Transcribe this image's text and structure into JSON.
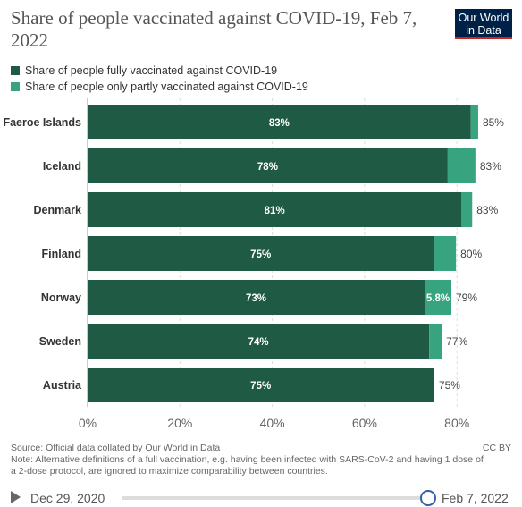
{
  "header": {
    "title": "Share of people vaccinated against COVID-19, Feb 7, 2022",
    "logo_line1": "Our World",
    "logo_line2": "in Data"
  },
  "legend": [
    {
      "label": "Share of people fully vaccinated against COVID-19",
      "color": "#1e5a44"
    },
    {
      "label": "Share of people only partly vaccinated against COVID-19",
      "color": "#37a47f"
    }
  ],
  "chart_data": {
    "type": "bar",
    "orientation": "horizontal",
    "stacked": true,
    "categories": [
      "Faeroe Islands",
      "Iceland",
      "Denmark",
      "Finland",
      "Norway",
      "Sweden",
      "Austria"
    ],
    "series": [
      {
        "name": "Share of people fully vaccinated against COVID-19",
        "values": [
          83,
          78,
          81,
          75,
          73,
          74,
          75
        ],
        "labels": [
          "83%",
          "78%",
          "81%",
          "75%",
          "73%",
          "74%",
          "75%"
        ],
        "color": "#1e5a44"
      },
      {
        "name": "Share of people only partly vaccinated against COVID-19",
        "values": [
          1.6,
          6.0,
          2.3,
          4.8,
          5.8,
          2.7,
          0.1
        ],
        "labels": [
          "",
          "",
          "",
          "",
          "5.8%",
          "",
          ""
        ],
        "color": "#37a47f"
      }
    ],
    "totals": [
      "85%",
      "83%",
      "83%",
      "80%",
      "79%",
      "77%",
      "75%"
    ],
    "xlim": [
      0,
      85
    ],
    "xticks": [
      0,
      20,
      40,
      60,
      80
    ],
    "xtick_labels": [
      "0%",
      "20%",
      "40%",
      "60%",
      "80%"
    ],
    "grid": true
  },
  "footer": {
    "source": "Source: Official data collated by Our World in Data",
    "note": "Note: Alternative definitions of a full vaccination, e.g. having been infected with SARS-CoV-2 and having 1 dose of a 2-dose protocol, are ignored to maximize comparability between countries.",
    "license": "CC BY"
  },
  "timeline": {
    "start": "Dec 29, 2020",
    "end": "Feb 7, 2022"
  }
}
